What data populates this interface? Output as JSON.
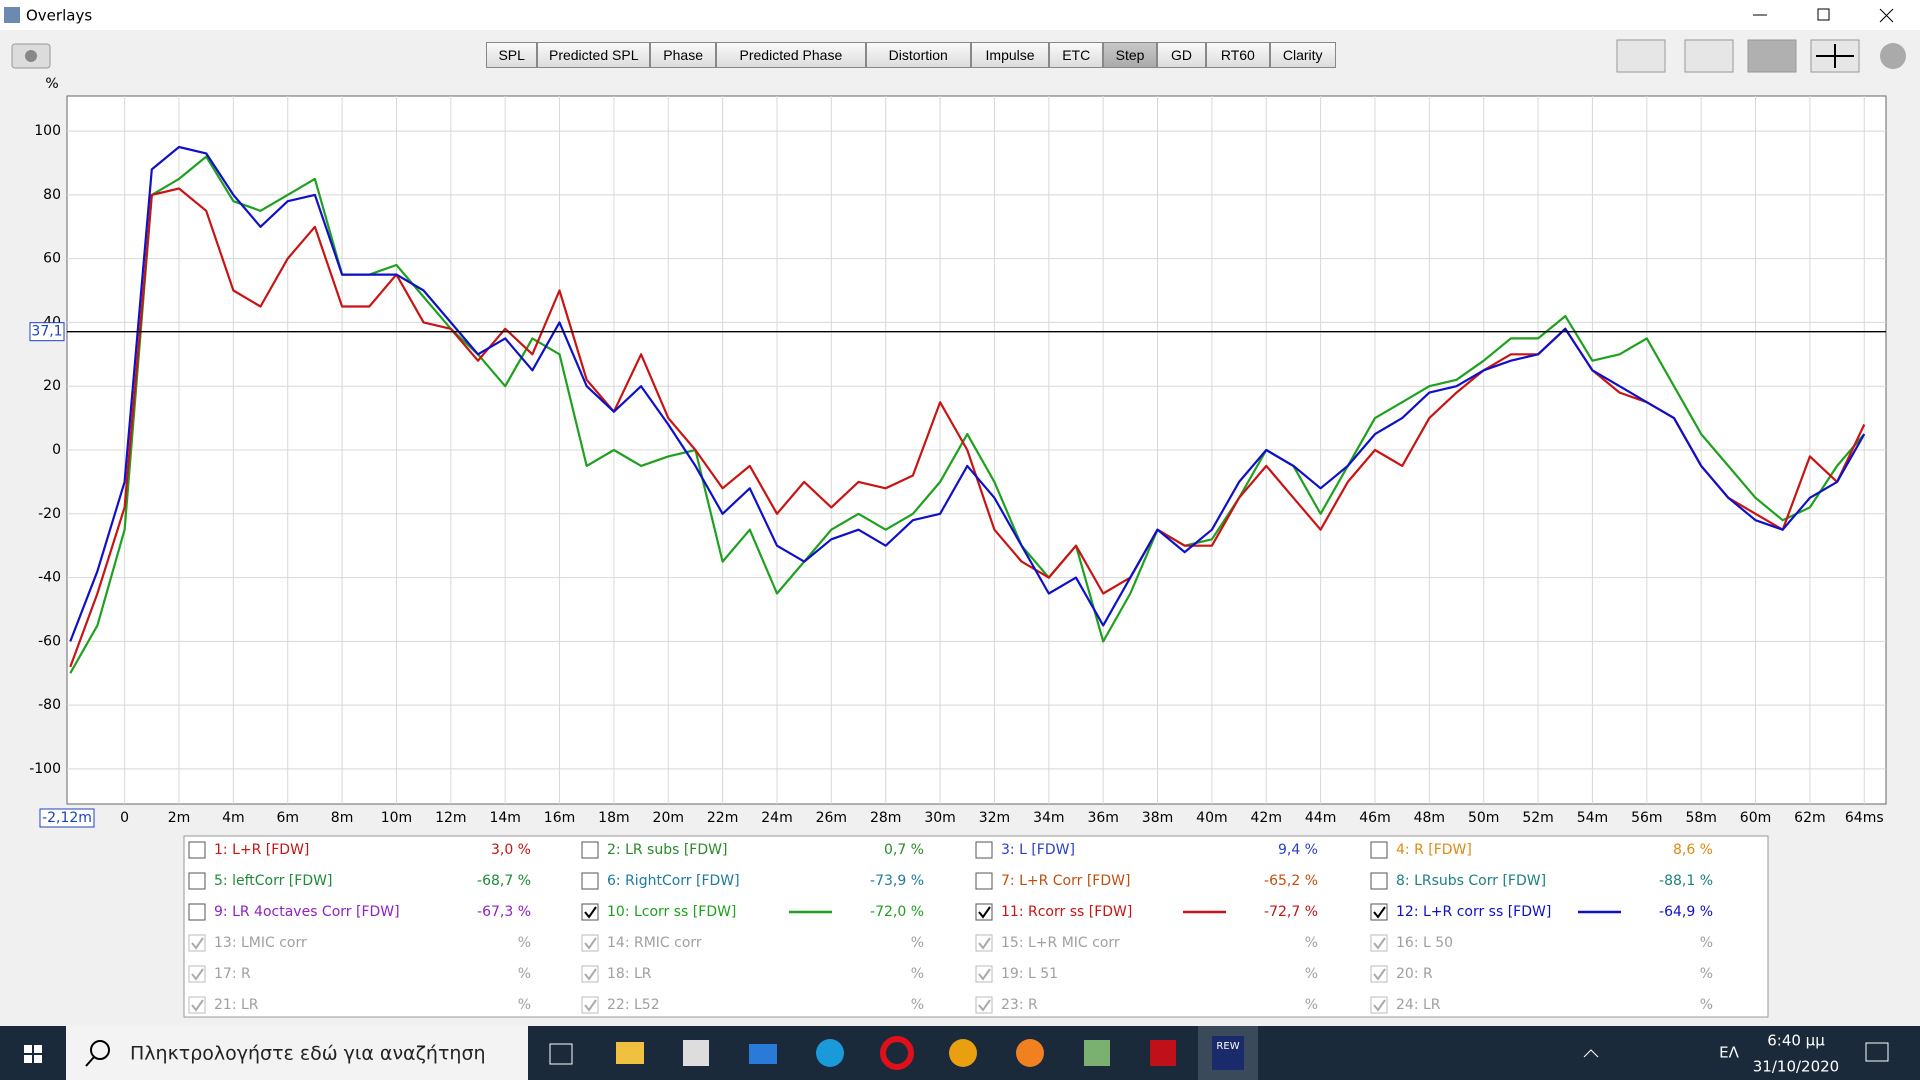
{
  "window": {
    "title": "Overlays"
  },
  "toolbar": {
    "tabs": [
      "SPL",
      "Predicted SPL",
      "Phase",
      "Predicted Phase",
      "Distortion",
      "Impulse",
      "ETC",
      "Step",
      "GD",
      "RT60",
      "Clarity"
    ],
    "active": 7
  },
  "chart_data": {
    "type": "line",
    "y_label": "%",
    "xlim": [
      -2.12,
      64.8
    ],
    "ylim": [
      -111,
      111
    ],
    "grid": true,
    "x_start_label": {
      "value": -2.12,
      "label": "-2,12m"
    },
    "cursor": {
      "value": 37.1,
      "label": "37,1"
    },
    "xticks": [
      0,
      {
        "value": 2,
        "label": "2m"
      },
      {
        "value": 4,
        "label": "4m"
      },
      {
        "value": 6,
        "label": "6m"
      },
      {
        "value": 8,
        "label": "8m"
      },
      {
        "value": 10,
        "label": "10m"
      },
      {
        "value": 12,
        "label": "12m"
      },
      {
        "value": 14,
        "label": "14m"
      },
      {
        "value": 16,
        "label": "16m"
      },
      {
        "value": 18,
        "label": "18m"
      },
      {
        "value": 20,
        "label": "20m"
      },
      {
        "value": 22,
        "label": "22m"
      },
      {
        "value": 24,
        "label": "24m"
      },
      {
        "value": 26,
        "label": "26m"
      },
      {
        "value": 28,
        "label": "28m"
      },
      {
        "value": 30,
        "label": "30m"
      },
      {
        "value": 32,
        "label": "32m"
      },
      {
        "value": 34,
        "label": "34m"
      },
      {
        "value": 36,
        "label": "36m"
      },
      {
        "value": 38,
        "label": "38m"
      },
      {
        "value": 40,
        "label": "40m"
      },
      {
        "value": 42,
        "label": "42m"
      },
      {
        "value": 44,
        "label": "44m"
      },
      {
        "value": 46,
        "label": "46m"
      },
      {
        "value": 48,
        "label": "48m"
      },
      {
        "value": 50,
        "label": "50m"
      },
      {
        "value": 52,
        "label": "52m"
      },
      {
        "value": 54,
        "label": "54m"
      },
      {
        "value": 56,
        "label": "56m"
      },
      {
        "value": 58,
        "label": "58m"
      },
      {
        "value": 60,
        "label": "60m"
      },
      {
        "value": 62,
        "label": "62m"
      },
      {
        "value": 64,
        "label": "64ms"
      }
    ],
    "yticks": [
      100,
      80,
      60,
      40,
      20,
      0,
      -20,
      -40,
      -60,
      -80,
      -100
    ],
    "x": [
      -2,
      -1,
      0,
      1,
      2,
      3,
      4,
      5,
      6,
      7,
      8,
      9,
      10,
      11,
      12,
      13,
      14,
      15,
      16,
      17,
      18,
      19,
      20,
      21,
      22,
      23,
      24,
      25,
      26,
      27,
      28,
      29,
      30,
      31,
      32,
      33,
      34,
      35,
      36,
      37,
      38,
      39,
      40,
      41,
      42,
      43,
      44,
      45,
      46,
      47,
      48,
      49,
      50,
      51,
      52,
      53,
      54,
      55,
      56,
      57,
      58,
      59,
      60,
      61,
      62,
      63,
      64
    ],
    "series": [
      {
        "color": "#1fa01f",
        "values": [
          -70,
          -55,
          -25,
          80,
          85,
          92,
          78,
          75,
          80,
          85,
          55,
          55,
          58,
          48,
          38,
          30,
          20,
          35,
          30,
          -5,
          0,
          -5,
          -2,
          0,
          -35,
          -25,
          -45,
          -35,
          -25,
          -20,
          -25,
          -20,
          -10,
          5,
          -10,
          -30,
          -40,
          -30,
          -60,
          -45,
          -25,
          -30,
          -28,
          -15,
          0,
          -5,
          -20,
          -5,
          10,
          15,
          20,
          22,
          28,
          35,
          35,
          42,
          28,
          30,
          35,
          20,
          5,
          -5,
          -15,
          -22,
          -18,
          -5,
          5
        ]
      },
      {
        "color": "#c81414",
        "values": [
          -68,
          -45,
          -18,
          80,
          82,
          75,
          50,
          45,
          60,
          70,
          45,
          45,
          55,
          40,
          38,
          28,
          38,
          30,
          50,
          22,
          12,
          30,
          10,
          0,
          -12,
          -5,
          -20,
          -10,
          -18,
          -10,
          -12,
          -8,
          15,
          0,
          -25,
          -35,
          -40,
          -30,
          -45,
          -40,
          -25,
          -30,
          -30,
          -15,
          -5,
          -15,
          -25,
          -10,
          0,
          -5,
          10,
          18,
          25,
          30,
          30,
          38,
          25,
          18,
          15,
          10,
          -5,
          -15,
          -20,
          -25,
          -2,
          -10,
          8
        ]
      },
      {
        "color": "#1010c8",
        "values": [
          -60,
          -38,
          -10,
          88,
          95,
          93,
          80,
          70,
          78,
          80,
          55,
          55,
          55,
          50,
          40,
          30,
          35,
          25,
          40,
          20,
          12,
          20,
          8,
          -5,
          -20,
          -12,
          -30,
          -35,
          -28,
          -25,
          -30,
          -22,
          -20,
          -5,
          -15,
          -30,
          -45,
          -40,
          -55,
          -40,
          -25,
          -32,
          -25,
          -10,
          0,
          -5,
          -12,
          -5,
          5,
          10,
          18,
          20,
          25,
          28,
          30,
          38,
          25,
          20,
          15,
          10,
          -5,
          -15,
          -22,
          -25,
          -15,
          -10,
          5
        ]
      }
    ]
  },
  "measurements": [
    {
      "label": "1: L+R [FDW]",
      "reading": "3,0 %",
      "checked": false,
      "enabled": true,
      "color": "#c81414"
    },
    {
      "label": "2: LR subs [FDW]",
      "reading": "0,7 %",
      "checked": false,
      "enabled": true,
      "color": "#2a8a2a"
    },
    {
      "label": "3: L [FDW]",
      "reading": "9,4 %",
      "checked": false,
      "enabled": true,
      "color": "#2a40c8"
    },
    {
      "label": "4: R [FDW]",
      "reading": "8,6 %",
      "checked": false,
      "enabled": true,
      "color": "#e08a10"
    },
    {
      "label": "5: leftCorr [FDW]",
      "reading": "-68,7 %",
      "checked": false,
      "enabled": true,
      "color": "#1f8a3a"
    },
    {
      "label": "6: RightCorr [FDW]",
      "reading": "-73,9 %",
      "checked": false,
      "enabled": true,
      "color": "#1f7aa0"
    },
    {
      "label": "7: L+R Corr [FDW]",
      "reading": "-65,2 %",
      "checked": false,
      "enabled": true,
      "color": "#c05010"
    },
    {
      "label": "8: LRsubs Corr [FDW]",
      "reading": "-88,1 %",
      "checked": false,
      "enabled": true,
      "color": "#1f8080"
    },
    {
      "label": "9: LR 4octaves Corr [FDW]",
      "reading": "-67,3 %",
      "checked": false,
      "enabled": true,
      "color": "#9020c8"
    },
    {
      "label": "10: Lcorr ss [FDW]",
      "reading": "-72,0 %",
      "checked": true,
      "enabled": true,
      "color": "#1fa01f"
    },
    {
      "label": "11: Rcorr ss [FDW]",
      "reading": "-72,7 %",
      "checked": true,
      "enabled": true,
      "color": "#c81414"
    },
    {
      "label": "12: L+R corr ss [FDW]",
      "reading": "-64,9 %",
      "checked": true,
      "enabled": true,
      "color": "#1010c8"
    },
    {
      "label": "13: LMIC corr",
      "reading": "%",
      "checked": true,
      "enabled": false,
      "color": "#a0a0a0"
    },
    {
      "label": "14: RMIC corr",
      "reading": "%",
      "checked": true,
      "enabled": false,
      "color": "#a0a0a0"
    },
    {
      "label": "15: L+R MIC corr",
      "reading": "%",
      "checked": true,
      "enabled": false,
      "color": "#a0a0a0"
    },
    {
      "label": "16: L 50",
      "reading": "%",
      "checked": true,
      "enabled": false,
      "color": "#a0a0a0"
    },
    {
      "label": "17: R",
      "reading": "%",
      "checked": true,
      "enabled": false,
      "color": "#a0a0a0"
    },
    {
      "label": "18: LR",
      "reading": "%",
      "checked": true,
      "enabled": false,
      "color": "#a0a0a0"
    },
    {
      "label": "19: L 51",
      "reading": "%",
      "checked": true,
      "enabled": false,
      "color": "#a0a0a0"
    },
    {
      "label": "20: R",
      "reading": "%",
      "checked": true,
      "enabled": false,
      "color": "#a0a0a0"
    },
    {
      "label": "21: LR",
      "reading": "%",
      "checked": true,
      "enabled": false,
      "color": "#a0a0a0"
    },
    {
      "label": "22: L52",
      "reading": "%",
      "checked": true,
      "enabled": false,
      "color": "#a0a0a0"
    },
    {
      "label": "23: R",
      "reading": "%",
      "checked": true,
      "enabled": false,
      "color": "#a0a0a0"
    },
    {
      "label": "24: LR",
      "reading": "%",
      "checked": true,
      "enabled": false,
      "color": "#a0a0a0"
    }
  ],
  "taskbar": {
    "search": "Πληκτρολογήστε εδώ για αναζήτηση",
    "language": "ΕΛ",
    "time": "6:40 μμ",
    "date": "31/10/2020",
    "rew_icon": "REW"
  }
}
